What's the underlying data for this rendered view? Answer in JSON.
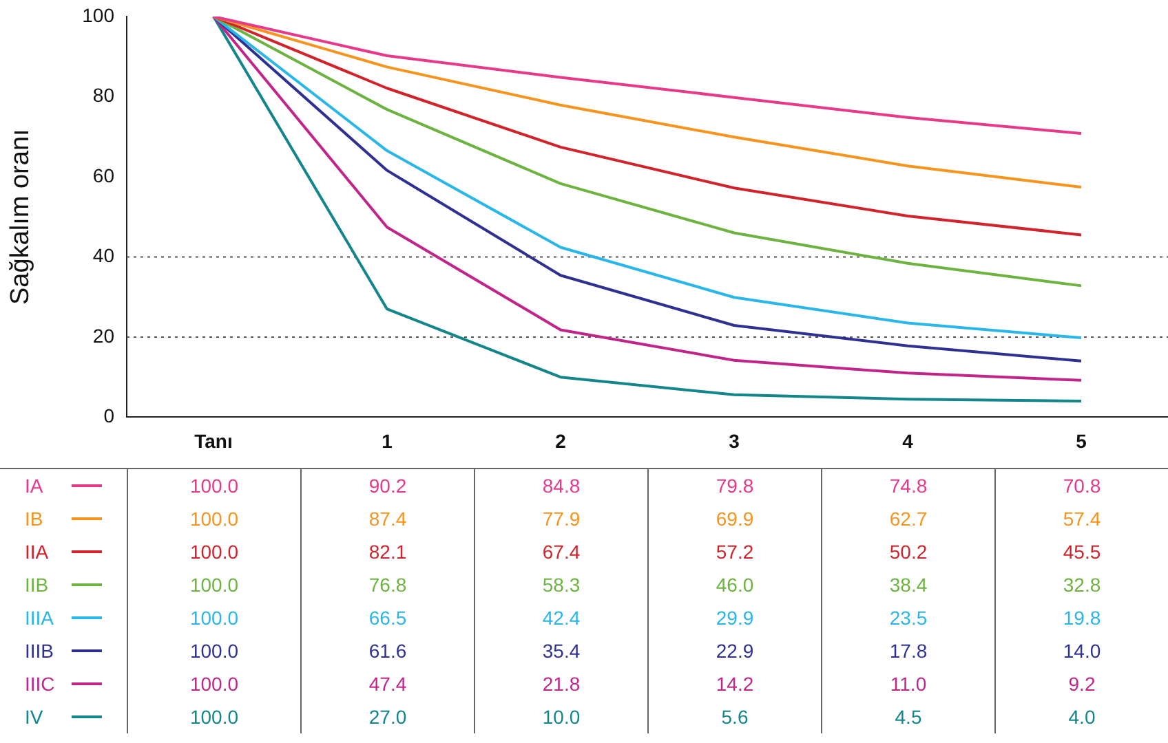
{
  "chart_data": {
    "type": "line",
    "ylabel": "Sağkalım oranı",
    "categories": [
      "Tanı",
      "1",
      "2",
      "3",
      "4",
      "5"
    ],
    "ylim": [
      0,
      100
    ],
    "yticks": [
      0,
      20,
      40,
      60,
      80,
      100
    ],
    "grid": false,
    "legend": "bottom left",
    "marker": "none",
    "line_style": "solid",
    "ref_lines": [
      {
        "axis": "y",
        "value": 20,
        "line_style": "dotted",
        "color": "#555555"
      },
      {
        "axis": "y",
        "value": 40,
        "line_style": "dotted",
        "color": "#555555"
      }
    ],
    "series": [
      {
        "name": "IA",
        "color": "#e8388a",
        "values": [
          100,
          90.2,
          84.8,
          79.8,
          74.8,
          70.8
        ],
        "value_labels": [
          "100.0",
          "90.2",
          "84.8",
          "79.8",
          "74.8",
          "70.8"
        ]
      },
      {
        "name": "IB",
        "color": "#f7941d",
        "values": [
          100,
          87.4,
          77.9,
          69.9,
          62.7,
          57.4
        ],
        "value_labels": [
          "100.0",
          "87.4",
          "77.9",
          "69.9",
          "62.7",
          "57.4"
        ]
      },
      {
        "name": "IIA",
        "color": "#d2232a",
        "values": [
          100,
          82.1,
          67.4,
          57.2,
          50.2,
          45.5
        ],
        "value_labels": [
          "100.0",
          "82.1",
          "67.4",
          "57.2",
          "50.2",
          "45.5"
        ]
      },
      {
        "name": "IIB",
        "color": "#6cb33f",
        "values": [
          100,
          76.8,
          58.3,
          46.0,
          38.4,
          32.8
        ],
        "value_labels": [
          "100.0",
          "76.8",
          "58.3",
          "46.0",
          "38.4",
          "32.8"
        ]
      },
      {
        "name": "IIIA",
        "color": "#29b6e8",
        "values": [
          100,
          66.5,
          42.4,
          29.9,
          23.5,
          19.8
        ],
        "value_labels": [
          "100.0",
          "66.5",
          "42.4",
          "29.9",
          "23.5",
          "19.8"
        ]
      },
      {
        "name": "IIIB",
        "color": "#2e3192",
        "values": [
          100,
          61.6,
          35.4,
          22.9,
          17.8,
          14.0
        ],
        "value_labels": [
          "100.0",
          "61.6",
          "35.4",
          "22.9",
          "17.8",
          "14.0"
        ]
      },
      {
        "name": "IIIC",
        "color": "#c1258a",
        "values": [
          100,
          47.4,
          21.8,
          14.2,
          11.0,
          9.2
        ],
        "value_labels": [
          "100.0",
          "47.4",
          "21.8",
          "14.2",
          "11.0",
          "9.2"
        ]
      },
      {
        "name": "IV",
        "color": "#12868a",
        "values": [
          100,
          27.0,
          10.0,
          5.6,
          4.5,
          4.0
        ],
        "value_labels": [
          "100.0",
          "27.0",
          "10.0",
          "5.6",
          "4.5",
          "4.0"
        ]
      }
    ]
  }
}
